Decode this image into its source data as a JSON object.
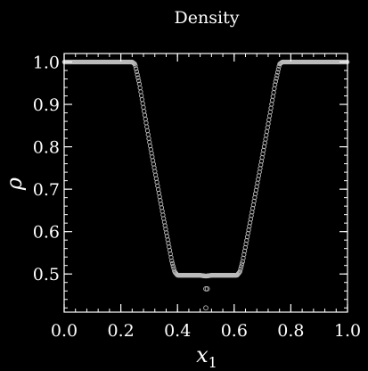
{
  "chart_data": {
    "type": "scatter",
    "title": "Density",
    "xlabel": "x",
    "xlabel_subscript": "1",
    "ylabel": "ρ",
    "xlim": [
      0.0,
      1.0
    ],
    "ylim": [
      0.41,
      1.02
    ],
    "xticks": [
      "0.0",
      "0.2",
      "0.4",
      "0.6",
      "0.8",
      "1.0"
    ],
    "xtick_values": [
      0.0,
      0.2,
      0.4,
      0.6,
      0.8,
      1.0
    ],
    "yticks": [
      "0.5",
      "0.6",
      "0.7",
      "0.8",
      "0.9",
      "1.0"
    ],
    "ytick_values": [
      0.5,
      0.6,
      0.7,
      0.8,
      0.9,
      1.0
    ],
    "grid": false,
    "background": "#000000",
    "foreground": "#ffffff",
    "marker_color": "#bbbbbb",
    "marker": "open-circle",
    "series": [
      {
        "profile": [
          [
            0.0,
            1.0
          ],
          [
            0.24,
            1.0
          ],
          [
            0.25,
            0.995
          ],
          [
            0.265,
            0.95
          ],
          [
            0.3,
            0.815
          ],
          [
            0.35,
            0.635
          ],
          [
            0.38,
            0.53
          ],
          [
            0.39,
            0.505
          ],
          [
            0.4,
            0.497
          ],
          [
            0.42,
            0.497
          ],
          [
            0.48,
            0.497
          ],
          [
            0.5,
            0.495
          ],
          [
            0.52,
            0.497
          ],
          [
            0.58,
            0.497
          ],
          [
            0.61,
            0.497
          ],
          [
            0.62,
            0.505
          ],
          [
            0.63,
            0.53
          ],
          [
            0.66,
            0.635
          ],
          [
            0.71,
            0.815
          ],
          [
            0.745,
            0.95
          ],
          [
            0.76,
            0.995
          ],
          [
            0.77,
            1.0
          ],
          [
            1.0,
            1.0
          ]
        ],
        "extra_points": [
          [
            0.5,
            0.465
          ],
          [
            0.505,
            0.465
          ],
          [
            0.5,
            0.42
          ]
        ]
      }
    ]
  }
}
